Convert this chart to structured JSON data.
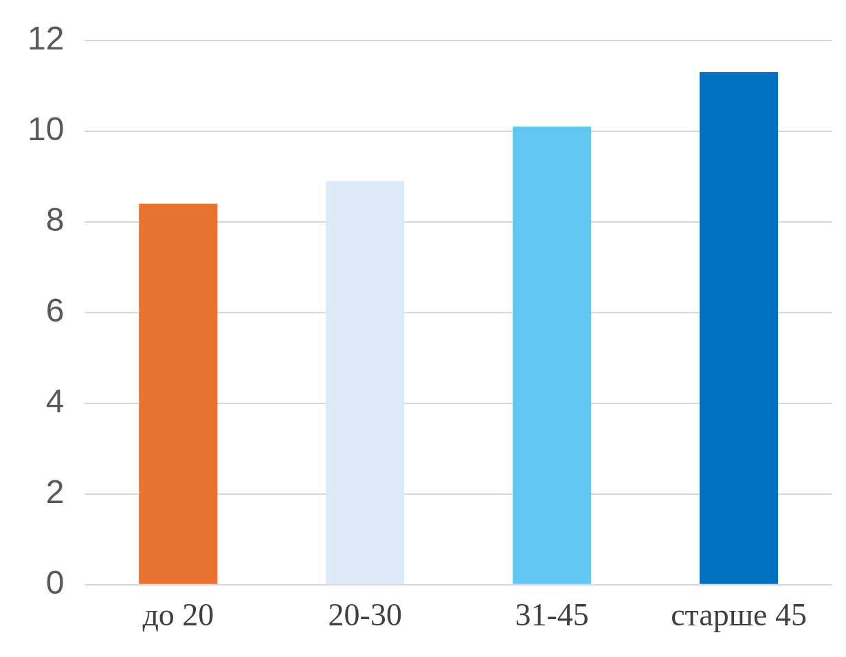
{
  "chart_data": {
    "type": "bar",
    "categories": [
      "до 20",
      "20-30",
      "31-45",
      "старше 45"
    ],
    "values": [
      8.4,
      8.9,
      10.1,
      11.3
    ],
    "colors": [
      "#e8722f",
      "#dde9f6",
      "#5fc7f2",
      "#0070c0"
    ],
    "ylim": [
      0,
      12
    ],
    "yticks": [
      0,
      2,
      4,
      6,
      8,
      10,
      12
    ],
    "grid": "y",
    "legend": false
  }
}
